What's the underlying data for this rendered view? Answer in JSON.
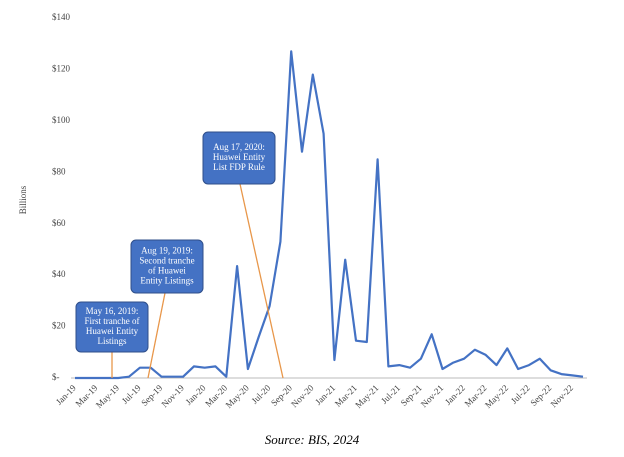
{
  "chart_data": {
    "type": "line",
    "y_label": "Billions",
    "source": "Source: BIS, 2024",
    "categories": [
      "Jan-19",
      null,
      "Mar-19",
      null,
      "May-19",
      null,
      "Jul-19",
      null,
      "Sep-19",
      null,
      "Nov-19",
      null,
      "Jan-20",
      null,
      "Mar-20",
      null,
      "May-20",
      null,
      "Jul-20",
      null,
      "Sep-20",
      null,
      "Nov-20",
      null,
      "Jan-21",
      null,
      "Mar-21",
      null,
      "May-21",
      null,
      "Jul-21",
      null,
      "Sep-21",
      null,
      "Nov-21",
      null,
      "Jan-22",
      null,
      "Mar-22",
      null,
      "May-22",
      null,
      "Jul-22",
      null,
      "Sep-22",
      null,
      "Nov-22",
      null
    ],
    "values": [
      0,
      0,
      0,
      0,
      0,
      0.5,
      4,
      4,
      0.5,
      0.5,
      0.5,
      4.5,
      4,
      4.5,
      0.5,
      43.5,
      3.5,
      16,
      28,
      53,
      127,
      88,
      118,
      95,
      7,
      46,
      14.5,
      14,
      85,
      4.5,
      5,
      4,
      7.5,
      17,
      3.5,
      6,
      7.5,
      11,
      9,
      5,
      11.5,
      3.5,
      5,
      7.5,
      3,
      1.5,
      1,
      0.5
    ],
    "color": "#4472c4",
    "ylim": [
      0,
      140
    ],
    "yticks": [
      {
        "value": 0,
        "label": "$-"
      },
      {
        "value": 20,
        "label": "$20"
      },
      {
        "value": 40,
        "label": "$40"
      },
      {
        "value": 60,
        "label": "$60"
      },
      {
        "value": 80,
        "label": "$80"
      },
      {
        "value": 100,
        "label": "$100"
      },
      {
        "value": 120,
        "label": "$120"
      },
      {
        "value": 140,
        "label": "$140"
      }
    ],
    "grid": false,
    "annotations": [
      {
        "lines": [
          "May 16, 2019:",
          "First tranche of",
          "Huawei Entity",
          "Listings"
        ]
      },
      {
        "lines": [
          "Aug 19, 2019:",
          "Second tranche",
          "of Huawei",
          "Entity Listings"
        ]
      },
      {
        "lines": [
          "Aug 17, 2020:",
          "Huawei Entity",
          "List FDP Rule"
        ]
      }
    ]
  }
}
